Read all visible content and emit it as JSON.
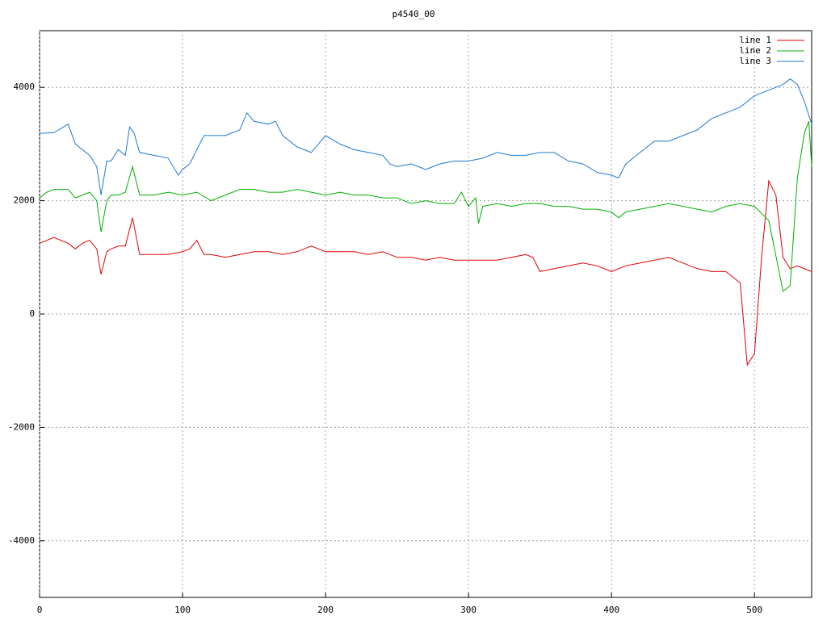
{
  "chart_data": {
    "type": "line",
    "title": "p4540_00",
    "xlim": [
      0,
      540
    ],
    "xticks": [
      0,
      100,
      200,
      300,
      400,
      500
    ],
    "ylim": [
      -5000,
      5000
    ],
    "yticks": [
      -4000,
      -2000,
      0,
      2000,
      4000
    ],
    "grid": true,
    "legend": "upper right",
    "series": [
      {
        "name": "line 1",
        "color": "#e00000",
        "x": [
          0,
          10,
          20,
          25,
          30,
          35,
          40,
          43,
          47,
          50,
          55,
          60,
          65,
          70,
          80,
          90,
          100,
          105,
          110,
          115,
          120,
          130,
          140,
          150,
          160,
          170,
          180,
          190,
          200,
          210,
          220,
          230,
          240,
          250,
          260,
          270,
          280,
          290,
          300,
          310,
          320,
          330,
          340,
          345,
          350,
          360,
          370,
          380,
          390,
          400,
          410,
          420,
          430,
          440,
          450,
          460,
          470,
          480,
          490,
          495,
          500,
          505,
          510,
          515,
          520,
          525,
          530,
          540
        ],
        "values": [
          1250,
          1350,
          1250,
          1150,
          1250,
          1300,
          1150,
          700,
          1100,
          1150,
          1200,
          1200,
          1700,
          1050,
          1050,
          1050,
          1100,
          1150,
          1300,
          1050,
          1050,
          1000,
          1050,
          1100,
          1100,
          1050,
          1100,
          1200,
          1100,
          1100,
          1100,
          1050,
          1100,
          1000,
          1000,
          950,
          1000,
          950,
          950,
          950,
          950,
          1000,
          1050,
          1000,
          750,
          800,
          850,
          900,
          850,
          750,
          850,
          900,
          950,
          1000,
          900,
          800,
          750,
          750,
          550,
          -900,
          -700,
          1000,
          2350,
          2100,
          1000,
          800,
          850,
          750
        ]
      },
      {
        "name": "line 2",
        "color": "#00b000",
        "x": [
          0,
          5,
          10,
          20,
          25,
          30,
          35,
          40,
          43,
          47,
          50,
          55,
          60,
          65,
          70,
          80,
          90,
          100,
          110,
          120,
          130,
          140,
          150,
          160,
          170,
          180,
          190,
          200,
          210,
          220,
          230,
          240,
          250,
          260,
          270,
          280,
          290,
          295,
          300,
          305,
          307,
          310,
          320,
          330,
          340,
          350,
          360,
          370,
          380,
          390,
          400,
          405,
          410,
          420,
          430,
          440,
          450,
          460,
          470,
          480,
          490,
          500,
          510,
          520,
          525,
          530,
          535,
          538,
          540
        ],
        "values": [
          2050,
          2150,
          2200,
          2200,
          2050,
          2100,
          2150,
          2000,
          1450,
          2000,
          2100,
          2100,
          2150,
          2600,
          2100,
          2100,
          2150,
          2100,
          2150,
          2000,
          2100,
          2200,
          2200,
          2150,
          2150,
          2200,
          2150,
          2100,
          2150,
          2100,
          2100,
          2050,
          2050,
          1950,
          2000,
          1950,
          1950,
          2150,
          1900,
          2050,
          1600,
          1900,
          1950,
          1900,
          1950,
          1950,
          1900,
          1900,
          1850,
          1850,
          1800,
          1700,
          1800,
          1850,
          1900,
          1950,
          1900,
          1850,
          1800,
          1900,
          1950,
          1900,
          1650,
          400,
          500,
          2400,
          3200,
          3400,
          2600
        ]
      },
      {
        "name": "line 3",
        "color": "#1f78d4",
        "x": [
          0,
          10,
          20,
          25,
          30,
          35,
          40,
          43,
          47,
          50,
          55,
          60,
          63,
          66,
          70,
          80,
          90,
          97,
          100,
          105,
          110,
          115,
          120,
          130,
          140,
          145,
          150,
          160,
          165,
          170,
          180,
          190,
          200,
          210,
          220,
          230,
          240,
          245,
          250,
          260,
          270,
          280,
          290,
          300,
          310,
          320,
          330,
          340,
          350,
          360,
          370,
          380,
          390,
          400,
          405,
          410,
          420,
          430,
          440,
          450,
          460,
          470,
          480,
          490,
          500,
          510,
          520,
          525,
          530,
          535,
          540
        ],
        "values": [
          3190,
          3200,
          3350,
          3000,
          2900,
          2800,
          2600,
          2100,
          2700,
          2700,
          2900,
          2800,
          3300,
          3200,
          2850,
          2800,
          2750,
          2450,
          2550,
          2650,
          2900,
          3150,
          3150,
          3150,
          3250,
          3550,
          3400,
          3350,
          3400,
          3150,
          2950,
          2850,
          3150,
          3000,
          2900,
          2850,
          2800,
          2650,
          2600,
          2650,
          2550,
          2650,
          2700,
          2700,
          2750,
          2850,
          2800,
          2800,
          2850,
          2850,
          2700,
          2650,
          2500,
          2450,
          2400,
          2650,
          2850,
          3050,
          3050,
          3150,
          3250,
          3450,
          3550,
          3650,
          3850,
          3950,
          4050,
          4150,
          4050,
          3750,
          3350
        ]
      }
    ]
  }
}
